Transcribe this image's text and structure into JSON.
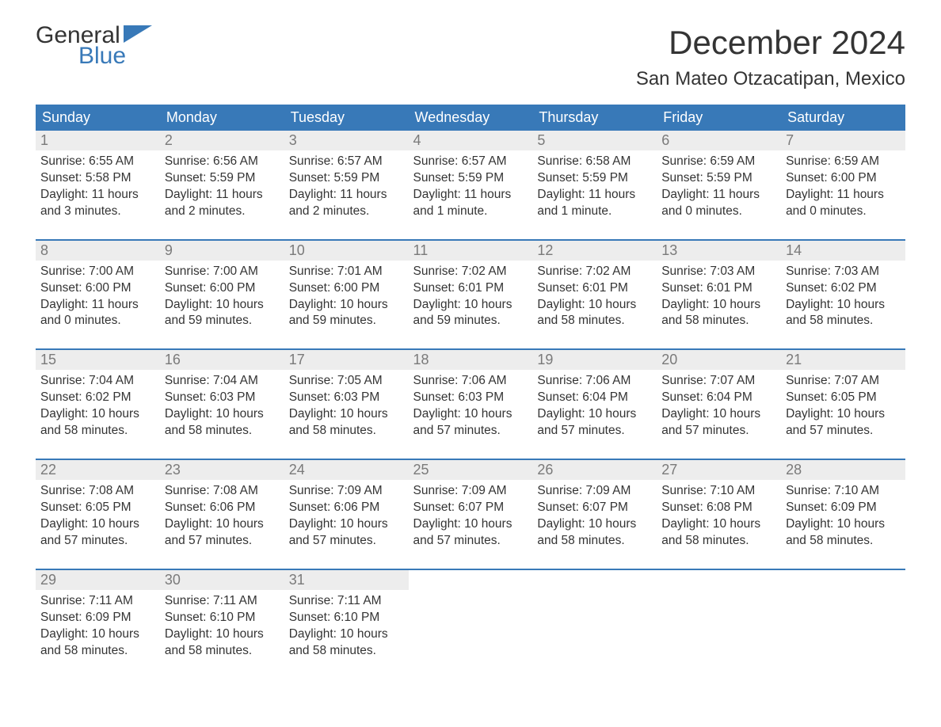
{
  "logo": {
    "line1": "General",
    "line2": "Blue",
    "accent_color": "#3879b8"
  },
  "title": "December 2024",
  "location": "San Mateo Otzacatipan, Mexico",
  "colors": {
    "header_bg": "#3879b8",
    "header_text": "#ffffff",
    "daynum_bg": "#ededed",
    "daynum_text": "#7a7a7a",
    "body_text": "#343434",
    "page_bg": "#ffffff"
  },
  "layout": {
    "columns": 7,
    "rows": 5
  },
  "weekdays": [
    "Sunday",
    "Monday",
    "Tuesday",
    "Wednesday",
    "Thursday",
    "Friday",
    "Saturday"
  ],
  "weeks": [
    [
      {
        "day": "1",
        "sunrise": "Sunrise: 6:55 AM",
        "sunset": "Sunset: 5:58 PM",
        "d1": "Daylight: 11 hours",
        "d2": "and 3 minutes."
      },
      {
        "day": "2",
        "sunrise": "Sunrise: 6:56 AM",
        "sunset": "Sunset: 5:59 PM",
        "d1": "Daylight: 11 hours",
        "d2": "and 2 minutes."
      },
      {
        "day": "3",
        "sunrise": "Sunrise: 6:57 AM",
        "sunset": "Sunset: 5:59 PM",
        "d1": "Daylight: 11 hours",
        "d2": "and 2 minutes."
      },
      {
        "day": "4",
        "sunrise": "Sunrise: 6:57 AM",
        "sunset": "Sunset: 5:59 PM",
        "d1": "Daylight: 11 hours",
        "d2": "and 1 minute."
      },
      {
        "day": "5",
        "sunrise": "Sunrise: 6:58 AM",
        "sunset": "Sunset: 5:59 PM",
        "d1": "Daylight: 11 hours",
        "d2": "and 1 minute."
      },
      {
        "day": "6",
        "sunrise": "Sunrise: 6:59 AM",
        "sunset": "Sunset: 5:59 PM",
        "d1": "Daylight: 11 hours",
        "d2": "and 0 minutes."
      },
      {
        "day": "7",
        "sunrise": "Sunrise: 6:59 AM",
        "sunset": "Sunset: 6:00 PM",
        "d1": "Daylight: 11 hours",
        "d2": "and 0 minutes."
      }
    ],
    [
      {
        "day": "8",
        "sunrise": "Sunrise: 7:00 AM",
        "sunset": "Sunset: 6:00 PM",
        "d1": "Daylight: 11 hours",
        "d2": "and 0 minutes."
      },
      {
        "day": "9",
        "sunrise": "Sunrise: 7:00 AM",
        "sunset": "Sunset: 6:00 PM",
        "d1": "Daylight: 10 hours",
        "d2": "and 59 minutes."
      },
      {
        "day": "10",
        "sunrise": "Sunrise: 7:01 AM",
        "sunset": "Sunset: 6:00 PM",
        "d1": "Daylight: 10 hours",
        "d2": "and 59 minutes."
      },
      {
        "day": "11",
        "sunrise": "Sunrise: 7:02 AM",
        "sunset": "Sunset: 6:01 PM",
        "d1": "Daylight: 10 hours",
        "d2": "and 59 minutes."
      },
      {
        "day": "12",
        "sunrise": "Sunrise: 7:02 AM",
        "sunset": "Sunset: 6:01 PM",
        "d1": "Daylight: 10 hours",
        "d2": "and 58 minutes."
      },
      {
        "day": "13",
        "sunrise": "Sunrise: 7:03 AM",
        "sunset": "Sunset: 6:01 PM",
        "d1": "Daylight: 10 hours",
        "d2": "and 58 minutes."
      },
      {
        "day": "14",
        "sunrise": "Sunrise: 7:03 AM",
        "sunset": "Sunset: 6:02 PM",
        "d1": "Daylight: 10 hours",
        "d2": "and 58 minutes."
      }
    ],
    [
      {
        "day": "15",
        "sunrise": "Sunrise: 7:04 AM",
        "sunset": "Sunset: 6:02 PM",
        "d1": "Daylight: 10 hours",
        "d2": "and 58 minutes."
      },
      {
        "day": "16",
        "sunrise": "Sunrise: 7:04 AM",
        "sunset": "Sunset: 6:03 PM",
        "d1": "Daylight: 10 hours",
        "d2": "and 58 minutes."
      },
      {
        "day": "17",
        "sunrise": "Sunrise: 7:05 AM",
        "sunset": "Sunset: 6:03 PM",
        "d1": "Daylight: 10 hours",
        "d2": "and 58 minutes."
      },
      {
        "day": "18",
        "sunrise": "Sunrise: 7:06 AM",
        "sunset": "Sunset: 6:03 PM",
        "d1": "Daylight: 10 hours",
        "d2": "and 57 minutes."
      },
      {
        "day": "19",
        "sunrise": "Sunrise: 7:06 AM",
        "sunset": "Sunset: 6:04 PM",
        "d1": "Daylight: 10 hours",
        "d2": "and 57 minutes."
      },
      {
        "day": "20",
        "sunrise": "Sunrise: 7:07 AM",
        "sunset": "Sunset: 6:04 PM",
        "d1": "Daylight: 10 hours",
        "d2": "and 57 minutes."
      },
      {
        "day": "21",
        "sunrise": "Sunrise: 7:07 AM",
        "sunset": "Sunset: 6:05 PM",
        "d1": "Daylight: 10 hours",
        "d2": "and 57 minutes."
      }
    ],
    [
      {
        "day": "22",
        "sunrise": "Sunrise: 7:08 AM",
        "sunset": "Sunset: 6:05 PM",
        "d1": "Daylight: 10 hours",
        "d2": "and 57 minutes."
      },
      {
        "day": "23",
        "sunrise": "Sunrise: 7:08 AM",
        "sunset": "Sunset: 6:06 PM",
        "d1": "Daylight: 10 hours",
        "d2": "and 57 minutes."
      },
      {
        "day": "24",
        "sunrise": "Sunrise: 7:09 AM",
        "sunset": "Sunset: 6:06 PM",
        "d1": "Daylight: 10 hours",
        "d2": "and 57 minutes."
      },
      {
        "day": "25",
        "sunrise": "Sunrise: 7:09 AM",
        "sunset": "Sunset: 6:07 PM",
        "d1": "Daylight: 10 hours",
        "d2": "and 57 minutes."
      },
      {
        "day": "26",
        "sunrise": "Sunrise: 7:09 AM",
        "sunset": "Sunset: 6:07 PM",
        "d1": "Daylight: 10 hours",
        "d2": "and 58 minutes."
      },
      {
        "day": "27",
        "sunrise": "Sunrise: 7:10 AM",
        "sunset": "Sunset: 6:08 PM",
        "d1": "Daylight: 10 hours",
        "d2": "and 58 minutes."
      },
      {
        "day": "28",
        "sunrise": "Sunrise: 7:10 AM",
        "sunset": "Sunset: 6:09 PM",
        "d1": "Daylight: 10 hours",
        "d2": "and 58 minutes."
      }
    ],
    [
      {
        "day": "29",
        "sunrise": "Sunrise: 7:11 AM",
        "sunset": "Sunset: 6:09 PM",
        "d1": "Daylight: 10 hours",
        "d2": "and 58 minutes."
      },
      {
        "day": "30",
        "sunrise": "Sunrise: 7:11 AM",
        "sunset": "Sunset: 6:10 PM",
        "d1": "Daylight: 10 hours",
        "d2": "and 58 minutes."
      },
      {
        "day": "31",
        "sunrise": "Sunrise: 7:11 AM",
        "sunset": "Sunset: 6:10 PM",
        "d1": "Daylight: 10 hours",
        "d2": "and 58 minutes."
      },
      null,
      null,
      null,
      null
    ]
  ]
}
